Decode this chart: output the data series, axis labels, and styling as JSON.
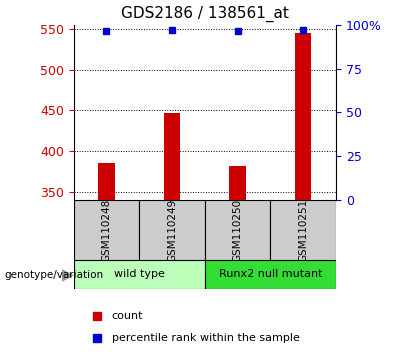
{
  "title": "GDS2186 / 138561_at",
  "samples": [
    "GSM110248",
    "GSM110249",
    "GSM110250",
    "GSM110251"
  ],
  "counts": [
    385,
    447,
    382,
    545
  ],
  "percentiles": [
    96.5,
    97.0,
    96.2,
    97.0
  ],
  "ylim_left": [
    340,
    555
  ],
  "ylim_right": [
    0,
    100
  ],
  "yticks_left": [
    350,
    400,
    450,
    500,
    550
  ],
  "yticks_right": [
    0,
    25,
    50,
    75,
    100
  ],
  "ytick_right_labels": [
    "0",
    "25",
    "50",
    "75",
    "100%"
  ],
  "bar_color": "#cc0000",
  "dot_color": "#0000cc",
  "groups": [
    {
      "label": "wild type",
      "indices": [
        0,
        1
      ],
      "color": "#bbffbb"
    },
    {
      "label": "Runx2 null mutant",
      "indices": [
        2,
        3
      ],
      "color": "#33dd33"
    }
  ],
  "group_label_prefix": "genotype/variation",
  "legend_count_label": "count",
  "legend_pct_label": "percentile rank within the sample",
  "bar_width": 0.25,
  "sample_box_color": "#cccccc",
  "title_fontsize": 11,
  "tick_fontsize": 9
}
